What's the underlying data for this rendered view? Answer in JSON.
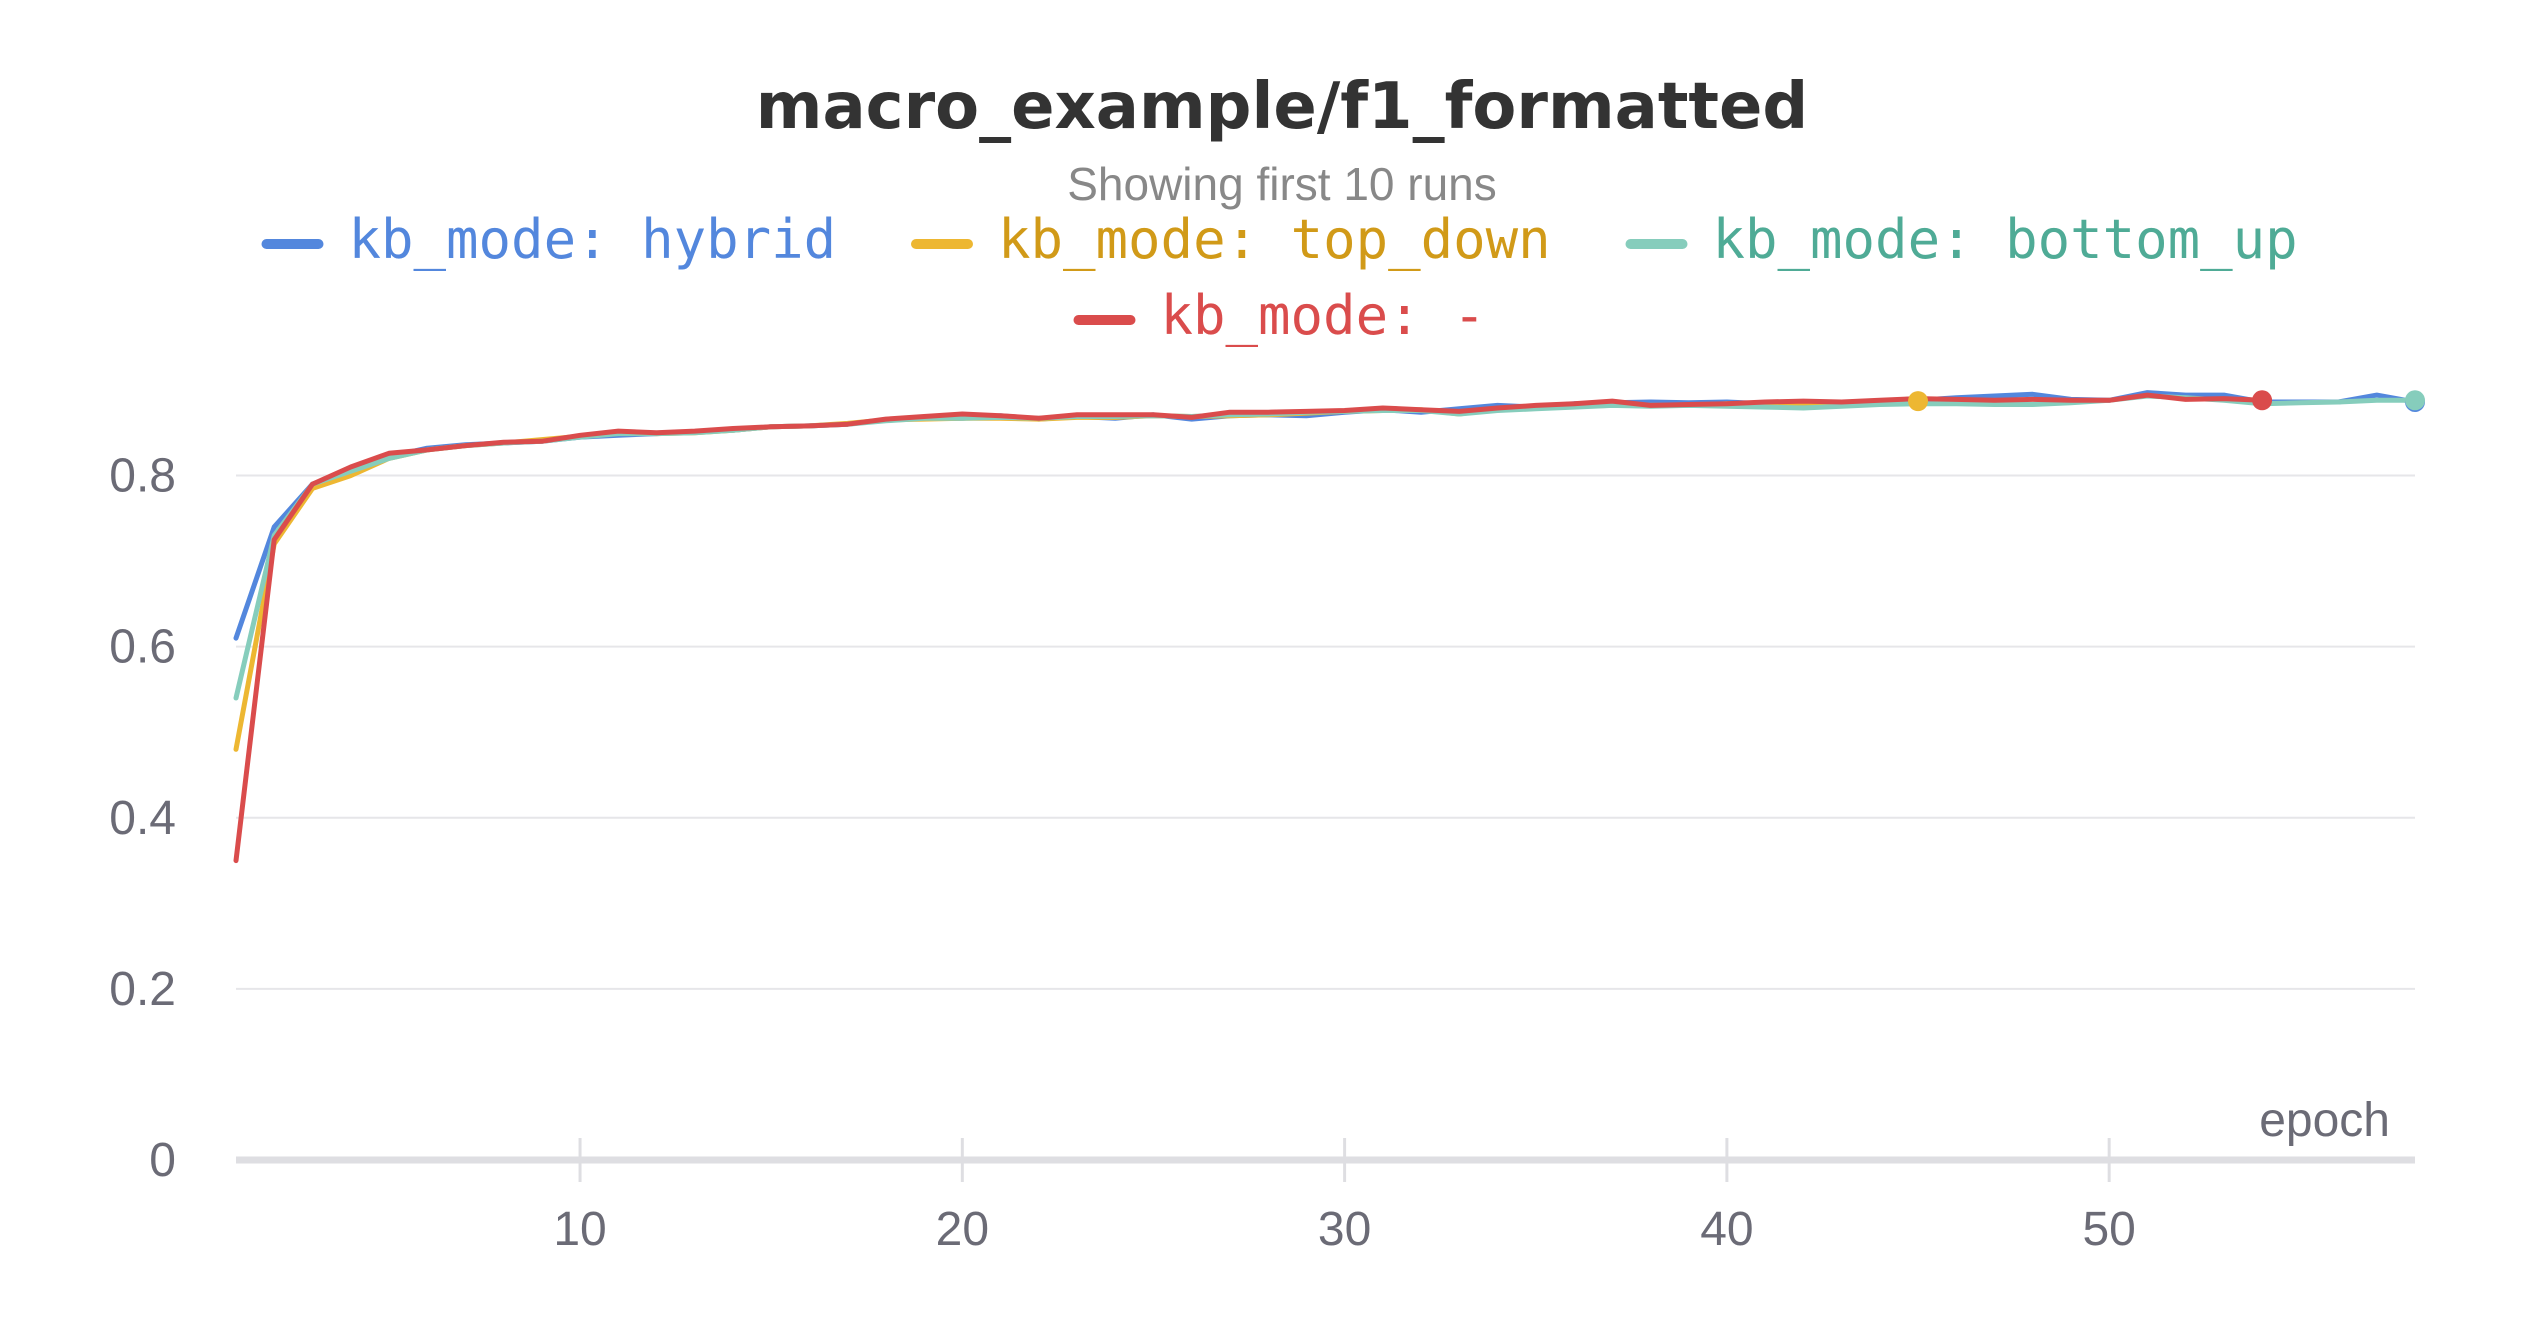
{
  "chart_data": {
    "type": "line",
    "title": "macro_example/f1_formatted",
    "subtitle": "Showing first 10 runs",
    "xlabel": "epoch",
    "ylabel": "",
    "xlim": [
      1,
      58
    ],
    "ylim": [
      0,
      0.9
    ],
    "x_ticks": [
      10,
      20,
      30,
      40,
      50
    ],
    "x_tick_labels": [
      "10",
      "20",
      "30",
      "40",
      "50"
    ],
    "y_ticks": [
      0,
      0.2,
      0.4,
      0.6,
      0.8
    ],
    "y_tick_labels": [
      "0",
      "0.2",
      "0.4",
      "0.6",
      "0.8"
    ],
    "grid": true,
    "legend_position": "top",
    "series": [
      {
        "name": "kb_mode: hybrid",
        "color": "#5387dd",
        "x": [
          1,
          2,
          3,
          4,
          5,
          6,
          7,
          8,
          9,
          10,
          11,
          12,
          13,
          14,
          15,
          16,
          17,
          18,
          19,
          20,
          21,
          22,
          23,
          24,
          25,
          26,
          27,
          28,
          29,
          30,
          31,
          32,
          33,
          34,
          35,
          36,
          37,
          38,
          39,
          40,
          41,
          42,
          43,
          44,
          45,
          46,
          47,
          48,
          49,
          50,
          51,
          52,
          53,
          54,
          55,
          56,
          57,
          58
        ],
        "values": [
          0.61,
          0.74,
          0.79,
          0.805,
          0.822,
          0.832,
          0.836,
          0.838,
          0.84,
          0.845,
          0.847,
          0.849,
          0.851,
          0.853,
          0.857,
          0.858,
          0.86,
          0.865,
          0.867,
          0.867,
          0.87,
          0.866,
          0.869,
          0.867,
          0.871,
          0.866,
          0.87,
          0.871,
          0.87,
          0.874,
          0.877,
          0.874,
          0.878,
          0.882,
          0.88,
          0.884,
          0.885,
          0.886,
          0.885,
          0.886,
          0.884,
          0.885,
          0.884,
          0.886,
          0.888,
          0.891,
          0.893,
          0.895,
          0.889,
          0.888,
          0.897,
          0.894,
          0.894,
          0.886,
          0.886,
          0.886,
          0.894,
          0.886
        ]
      },
      {
        "name": "kb_mode: top_down",
        "color": "#edb732",
        "x": [
          1,
          2,
          3,
          4,
          5,
          6,
          7,
          8,
          9,
          10,
          11,
          12,
          13,
          14,
          15,
          16,
          17,
          18,
          19,
          20,
          21,
          22,
          23,
          24,
          25,
          26,
          27,
          28,
          29,
          30,
          31,
          32,
          33,
          34,
          35,
          36,
          37,
          38,
          39,
          40,
          41,
          42,
          43,
          44,
          45
        ],
        "values": [
          0.48,
          0.72,
          0.785,
          0.8,
          0.82,
          0.83,
          0.835,
          0.838,
          0.842,
          0.846,
          0.851,
          0.849,
          0.85,
          0.853,
          0.857,
          0.858,
          0.861,
          0.865,
          0.866,
          0.867,
          0.867,
          0.866,
          0.868,
          0.868,
          0.87,
          0.869,
          0.87,
          0.871,
          0.873,
          0.875,
          0.876,
          0.877,
          0.872,
          0.878,
          0.88,
          0.881,
          0.882,
          0.882,
          0.882,
          0.884,
          0.883,
          0.885,
          0.884,
          0.886,
          0.887
        ]
      },
      {
        "name": "kb_mode: bottom_up",
        "color": "#86cdbc",
        "x": [
          1,
          2,
          3,
          4,
          5,
          6,
          7,
          8,
          9,
          10,
          11,
          12,
          13,
          14,
          15,
          16,
          17,
          18,
          19,
          20,
          21,
          22,
          23,
          24,
          25,
          26,
          27,
          28,
          29,
          30,
          31,
          32,
          33,
          34,
          35,
          36,
          37,
          38,
          39,
          40,
          41,
          42,
          43,
          44,
          45,
          46,
          47,
          48,
          49,
          50,
          51,
          52,
          53,
          54,
          55,
          56,
          57,
          58
        ],
        "values": [
          0.54,
          0.73,
          0.79,
          0.805,
          0.82,
          0.83,
          0.835,
          0.838,
          0.84,
          0.845,
          0.849,
          0.849,
          0.85,
          0.853,
          0.857,
          0.858,
          0.86,
          0.864,
          0.867,
          0.867,
          0.868,
          0.867,
          0.869,
          0.869,
          0.87,
          0.869,
          0.871,
          0.872,
          0.874,
          0.875,
          0.876,
          0.876,
          0.872,
          0.876,
          0.878,
          0.88,
          0.882,
          0.881,
          0.882,
          0.881,
          0.88,
          0.879,
          0.881,
          0.883,
          0.884,
          0.884,
          0.883,
          0.883,
          0.885,
          0.888,
          0.893,
          0.891,
          0.888,
          0.884,
          0.885,
          0.886,
          0.888,
          0.888
        ]
      },
      {
        "name": "kb_mode: -",
        "color": "#da4c4c",
        "x": [
          1,
          2,
          3,
          4,
          5,
          6,
          7,
          8,
          9,
          10,
          11,
          12,
          13,
          14,
          15,
          16,
          17,
          18,
          19,
          20,
          21,
          22,
          23,
          24,
          25,
          26,
          27,
          28,
          29,
          30,
          31,
          32,
          33,
          34,
          35,
          36,
          37,
          38,
          39,
          40,
          41,
          42,
          43,
          44,
          45,
          46,
          47,
          48,
          49,
          50,
          51,
          52,
          53,
          54
        ],
        "values": [
          0.35,
          0.725,
          0.79,
          0.81,
          0.826,
          0.83,
          0.835,
          0.839,
          0.84,
          0.847,
          0.852,
          0.85,
          0.852,
          0.855,
          0.857,
          0.858,
          0.86,
          0.866,
          0.869,
          0.872,
          0.87,
          0.867,
          0.871,
          0.871,
          0.871,
          0.868,
          0.874,
          0.874,
          0.875,
          0.876,
          0.879,
          0.877,
          0.875,
          0.879,
          0.882,
          0.884,
          0.887,
          0.882,
          0.883,
          0.884,
          0.886,
          0.887,
          0.886,
          0.888,
          0.89,
          0.889,
          0.888,
          0.889,
          0.888,
          0.888,
          0.894,
          0.889,
          0.89,
          0.888
        ]
      }
    ]
  }
}
